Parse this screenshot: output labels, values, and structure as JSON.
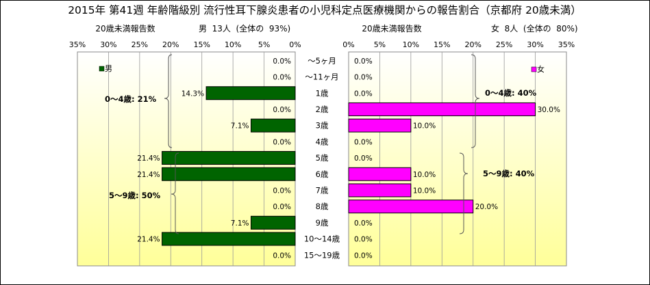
{
  "title": "2015年 第41週 年齢階級別 流行性耳下腺炎患者の小児科定点医療機関からの報告割合（京都府 20歳未満）",
  "male_header": {
    "subtitle": "20歳未満報告数",
    "summary": "男  13人  (全体の  93%)"
  },
  "female_header": {
    "subtitle": "20歳未満報告数",
    "summary": "女  8人  (全体の  80%)"
  },
  "colors": {
    "male": "#006400",
    "female": "#ff00ff",
    "plot_bg_top": "#ffffff",
    "plot_bg_bottom": "#ffff99"
  },
  "chart_data": {
    "type": "bar",
    "orientation": "horizontal-butterfly",
    "categories": [
      "～5ヶ月",
      "～11ヶ月",
      "1歳",
      "2歳",
      "3歳",
      "4歳",
      "5歳",
      "6歳",
      "7歳",
      "8歳",
      "9歳",
      "10～14歳",
      "15～19歳"
    ],
    "series": [
      {
        "name": "男",
        "values": [
          0.0,
          0.0,
          14.3,
          0.0,
          7.1,
          0.0,
          21.4,
          21.4,
          0.0,
          0.0,
          7.1,
          21.4,
          0.0
        ],
        "labels": [
          "0.0%",
          "0.0%",
          "14.3%",
          "0.0%",
          "7.1%",
          "0.0%",
          "21.4%",
          "21.4%",
          "0.0%",
          "0.0%",
          "7.1%",
          "21.4%",
          "0.0%"
        ]
      },
      {
        "name": "女",
        "values": [
          0.0,
          0.0,
          0.0,
          30.0,
          10.0,
          0.0,
          0.0,
          10.0,
          10.0,
          20.0,
          0.0,
          0.0,
          0.0
        ],
        "labels": [
          "0.0%",
          "0.0%",
          "0.0%",
          "30.0%",
          "10.0%",
          "0.0%",
          "0.0%",
          "10.0%",
          "10.0%",
          "20.0%",
          "0.0%",
          "0.0%",
          "0.0%"
        ]
      }
    ],
    "xlim": [
      0,
      35
    ],
    "x_ticks_male": [
      "35%",
      "30%",
      "25%",
      "20%",
      "15%",
      "10%",
      "5%",
      "0%"
    ],
    "x_ticks_female": [
      "0%",
      "5%",
      "10%",
      "15%",
      "20%",
      "25%",
      "30%",
      "35%"
    ],
    "grid": true,
    "legend_male": "男",
    "legend_female": "女",
    "annotations": {
      "male_0_4": "0～4歳: 21%",
      "male_5_9": "5～9歳: 50%",
      "female_0_4": "0～4歳: 40%",
      "female_5_9": "5～9歳: 40%"
    }
  }
}
